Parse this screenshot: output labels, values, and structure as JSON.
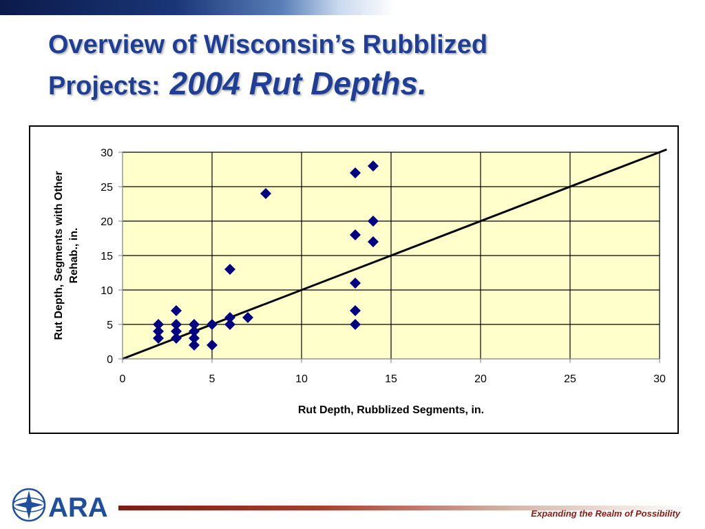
{
  "slide": {
    "title_line1": "Overview of Wisconsin’s Rubblized",
    "title_line2": "Projects:",
    "title_emphasis": "2004 Rut Depths.",
    "tagline": "Expanding the Realm of Possibility",
    "logo_text": "ARA"
  },
  "colors": {
    "title": "#1f3f97",
    "plot_bg": "#ffffcc",
    "marker": "#000080",
    "tagline": "#8a1a12"
  },
  "chart_data": {
    "type": "scatter",
    "title": "",
    "xlabel": "Rut Depth, Rubblized Segments, in.",
    "ylabel_lines": [
      "Rut Depth, Segments with Other",
      "Rehab., in."
    ],
    "xlim": [
      0,
      30
    ],
    "ylim": [
      0,
      30
    ],
    "xticks": [
      0,
      5,
      10,
      15,
      20,
      25,
      30
    ],
    "yticks": [
      0,
      5,
      10,
      15,
      20,
      25,
      30
    ],
    "grid": true,
    "marker": "diamond",
    "points": [
      [
        2,
        5
      ],
      [
        2,
        4
      ],
      [
        2,
        3
      ],
      [
        3,
        7
      ],
      [
        3,
        5
      ],
      [
        3,
        4
      ],
      [
        3,
        3
      ],
      [
        4,
        5
      ],
      [
        4,
        4
      ],
      [
        4,
        3
      ],
      [
        4,
        2
      ],
      [
        5,
        5
      ],
      [
        5,
        2
      ],
      [
        6,
        13
      ],
      [
        6,
        6
      ],
      [
        6,
        5
      ],
      [
        7,
        6
      ],
      [
        8,
        24
      ],
      [
        13,
        27
      ],
      [
        13,
        18
      ],
      [
        13,
        11
      ],
      [
        13,
        7
      ],
      [
        13,
        5
      ],
      [
        14,
        28
      ],
      [
        14,
        20
      ],
      [
        14,
        17
      ]
    ],
    "reference_line": {
      "label": "",
      "x": [
        0,
        30.4
      ],
      "y": [
        0,
        30.4
      ]
    }
  }
}
